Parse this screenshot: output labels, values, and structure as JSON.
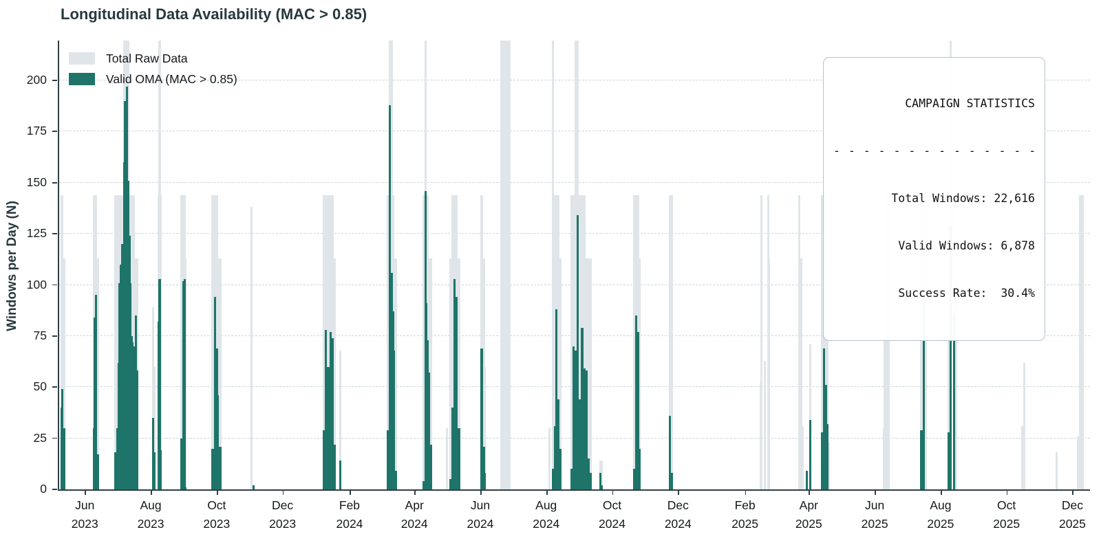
{
  "title": "Longitudinal Data Availability (MAC > 0.85)",
  "legend": {
    "total_label": "Total Raw Data",
    "valid_label": "Valid OMA (MAC > 0.85)"
  },
  "stats_box": {
    "title": "CAMPAIGN STATISTICS",
    "separator": "- - - - - - - - - - - - - - - ",
    "lines": [
      "Total Windows: 22,616",
      "Valid Windows: 6,878",
      "Success Rate:  30.4%"
    ]
  },
  "colors": {
    "total_bar": "#dfe5e9",
    "valid_bar": "#1e7468",
    "grid": "#ccd6da",
    "spine": "#2f3e44",
    "heading_text": "#28383f",
    "tick_text": "#14181a"
  },
  "chart_data": {
    "type": "bar",
    "title": "Longitudinal Data Availability (MAC > 0.85)",
    "xlabel": "",
    "ylabel": "Windows per Day (N)",
    "ylim": [
      0,
      219.5
    ],
    "yticks": [
      0,
      25,
      50,
      75,
      100,
      125,
      150,
      175,
      200
    ],
    "xlim": [
      "2023-05-07",
      "2025-12-16"
    ],
    "grid": "dashed-horizontal",
    "legend_position": "upper-left",
    "series": [
      {
        "name": "Total Raw Data",
        "color_key": "total_bar"
      },
      {
        "name": "Valid OMA (MAC > 0.85)",
        "color_key": "valid_bar"
      }
    ],
    "xticks": [
      {
        "month": "Jun",
        "year": "2023",
        "date": "2023-06-01"
      },
      {
        "month": "Aug",
        "year": "2023",
        "date": "2023-08-01"
      },
      {
        "month": "Oct",
        "year": "2023",
        "date": "2023-10-01"
      },
      {
        "month": "Dec",
        "year": "2023",
        "date": "2023-12-01"
      },
      {
        "month": "Feb",
        "year": "2024",
        "date": "2024-02-01"
      },
      {
        "month": "Apr",
        "year": "2024",
        "date": "2024-04-01"
      },
      {
        "month": "Jun",
        "year": "2024",
        "date": "2024-06-01"
      },
      {
        "month": "Aug",
        "year": "2024",
        "date": "2024-08-01"
      },
      {
        "month": "Oct",
        "year": "2024",
        "date": "2024-10-01"
      },
      {
        "month": "Dec",
        "year": "2024",
        "date": "2024-12-01"
      },
      {
        "month": "Feb",
        "year": "2025",
        "date": "2025-02-01"
      },
      {
        "month": "Apr",
        "year": "2025",
        "date": "2025-04-01"
      },
      {
        "month": "Jun",
        "year": "2025",
        "date": "2025-06-01"
      },
      {
        "month": "Aug",
        "year": "2025",
        "date": "2025-08-01"
      },
      {
        "month": "Oct",
        "year": "2025",
        "date": "2025-10-01"
      },
      {
        "month": "Dec",
        "year": "2025",
        "date": "2025-12-01"
      }
    ],
    "bars_format": "[date, total_raw, valid_oma, optional_span_days] — total 220 means bar exceeds axis top (clipped)",
    "bars": [
      [
        "2023-05-09",
        144,
        40
      ],
      [
        "2023-05-10",
        144,
        49
      ],
      [
        "2023-05-12",
        113,
        30
      ],
      [
        "2023-06-08",
        144,
        30
      ],
      [
        "2023-06-09",
        144,
        84
      ],
      [
        "2023-06-10",
        144,
        95
      ],
      [
        "2023-06-12",
        113,
        17
      ],
      [
        "2023-06-28",
        144,
        18
      ],
      [
        "2023-06-30",
        144,
        30
      ],
      [
        "2023-07-01",
        144,
        62
      ],
      [
        "2023-07-02",
        144,
        101
      ],
      [
        "2023-07-03",
        144,
        110
      ],
      [
        "2023-07-04",
        144,
        120
      ],
      [
        "2023-07-05",
        144,
        101
      ],
      [
        "2023-07-06",
        220,
        160
      ],
      [
        "2023-07-07",
        220,
        190
      ],
      [
        "2023-07-08",
        144,
        120
      ],
      [
        "2023-07-09",
        220,
        197
      ],
      [
        "2023-07-10",
        220,
        151
      ],
      [
        "2023-07-11",
        144,
        124
      ],
      [
        "2023-07-12",
        144,
        101
      ],
      [
        "2023-07-13",
        144,
        75
      ],
      [
        "2023-07-14",
        144,
        72
      ],
      [
        "2023-07-15",
        144,
        70
      ],
      [
        "2023-07-16",
        113,
        68
      ],
      [
        "2023-07-17",
        113,
        85
      ],
      [
        "2023-07-18",
        113,
        58
      ],
      [
        "2023-08-02",
        89,
        35
      ],
      [
        "2023-08-03",
        60,
        18
      ],
      [
        "2023-08-07",
        144,
        82
      ],
      [
        "2023-08-08",
        220,
        103
      ],
      [
        "2023-08-09",
        144,
        19
      ],
      [
        "2023-08-28",
        144,
        25
      ],
      [
        "2023-08-30",
        144,
        102
      ],
      [
        "2023-08-31",
        144,
        103
      ],
      [
        "2023-09-01",
        113,
        1
      ],
      [
        "2023-09-26",
        144,
        20
      ],
      [
        "2023-09-28",
        144,
        94
      ],
      [
        "2023-09-30",
        144,
        69
      ],
      [
        "2023-10-01",
        113,
        46
      ],
      [
        "2023-10-03",
        113,
        21
      ],
      [
        "2023-11-01",
        138,
        0
      ],
      [
        "2023-11-03",
        0,
        2
      ],
      [
        "2024-01-07",
        144,
        29
      ],
      [
        "2024-01-09",
        144,
        78
      ],
      [
        "2024-01-11",
        144,
        60
      ],
      [
        "2024-01-13",
        144,
        77
      ],
      [
        "2024-01-15",
        144,
        74
      ],
      [
        "2024-01-17",
        113,
        22
      ],
      [
        "2024-01-22",
        68,
        14
      ],
      [
        "2024-03-06",
        144,
        29
      ],
      [
        "2024-03-08",
        220,
        188
      ],
      [
        "2024-03-10",
        220,
        106
      ],
      [
        "2024-03-11",
        144,
        87
      ],
      [
        "2024-03-12",
        113,
        68
      ],
      [
        "2024-03-14",
        113,
        9
      ],
      [
        "2024-04-08",
        144,
        4
      ],
      [
        "2024-04-10",
        220,
        146
      ],
      [
        "2024-04-11",
        144,
        91
      ],
      [
        "2024-04-12",
        144,
        73
      ],
      [
        "2024-04-13",
        113,
        57
      ],
      [
        "2024-04-15",
        113,
        22
      ],
      [
        "2024-04-30",
        30,
        0
      ],
      [
        "2024-05-03",
        113,
        5
      ],
      [
        "2024-05-05",
        144,
        40
      ],
      [
        "2024-05-07",
        144,
        103
      ],
      [
        "2024-05-09",
        144,
        94
      ],
      [
        "2024-05-11",
        113,
        30
      ],
      [
        "2024-06-01",
        144,
        69
      ],
      [
        "2024-06-03",
        113,
        21
      ],
      [
        "2024-06-04",
        60,
        8
      ],
      [
        "2024-06-23",
        220,
        0,
        9
      ],
      [
        "2024-08-03",
        30,
        0
      ],
      [
        "2024-08-06",
        220,
        10
      ],
      [
        "2024-08-08",
        144,
        31
      ],
      [
        "2024-08-09",
        144,
        88
      ],
      [
        "2024-08-11",
        144,
        44
      ],
      [
        "2024-08-13",
        113,
        20
      ],
      [
        "2024-08-23",
        144,
        10
      ],
      [
        "2024-08-25",
        144,
        70
      ],
      [
        "2024-08-27",
        220,
        68
      ],
      [
        "2024-08-29",
        220,
        134
      ],
      [
        "2024-08-31",
        144,
        44
      ],
      [
        "2024-09-02",
        144,
        79
      ],
      [
        "2024-09-04",
        144,
        59
      ],
      [
        "2024-09-06",
        113,
        58
      ],
      [
        "2024-09-08",
        113,
        15
      ],
      [
        "2024-09-10",
        113,
        8
      ],
      [
        "2024-09-19",
        14,
        8
      ],
      [
        "2024-09-20",
        14,
        2
      ],
      [
        "2024-10-20",
        144,
        10
      ],
      [
        "2024-10-22",
        144,
        85
      ],
      [
        "2024-10-24",
        144,
        77
      ],
      [
        "2024-10-25",
        113,
        20
      ],
      [
        "2024-11-22",
        144,
        36
      ],
      [
        "2024-11-24",
        144,
        8
      ],
      [
        "2025-02-14",
        52,
        0
      ],
      [
        "2025-02-15",
        144,
        0
      ],
      [
        "2025-02-18",
        63,
        0
      ],
      [
        "2025-02-21",
        144,
        0
      ],
      [
        "2025-02-22",
        113,
        0
      ],
      [
        "2025-03-22",
        144,
        0
      ],
      [
        "2025-03-24",
        113,
        0
      ],
      [
        "2025-03-25",
        31,
        0
      ],
      [
        "2025-03-29",
        0,
        9
      ],
      [
        "2025-04-01",
        71,
        34
      ],
      [
        "2025-04-12",
        144,
        28
      ],
      [
        "2025-04-14",
        144,
        69
      ],
      [
        "2025-04-16",
        144,
        51
      ],
      [
        "2025-04-17",
        113,
        32
      ],
      [
        "2025-04-18",
        23,
        0
      ],
      [
        "2025-06-08",
        30,
        0
      ],
      [
        "2025-06-11",
        144,
        0,
        6
      ],
      [
        "2025-07-13",
        144,
        29
      ],
      [
        "2025-07-15",
        144,
        95
      ],
      [
        "2025-07-17",
        144,
        0
      ],
      [
        "2025-08-07",
        113,
        28
      ],
      [
        "2025-08-09",
        220,
        129
      ],
      [
        "2025-08-12",
        144,
        86
      ],
      [
        "2025-08-14",
        102,
        0
      ],
      [
        "2025-10-14",
        31,
        0
      ],
      [
        "2025-10-16",
        62,
        0
      ],
      [
        "2025-11-15",
        18,
        0
      ],
      [
        "2025-12-05",
        26,
        0
      ],
      [
        "2025-12-08",
        144,
        0,
        5
      ]
    ]
  }
}
